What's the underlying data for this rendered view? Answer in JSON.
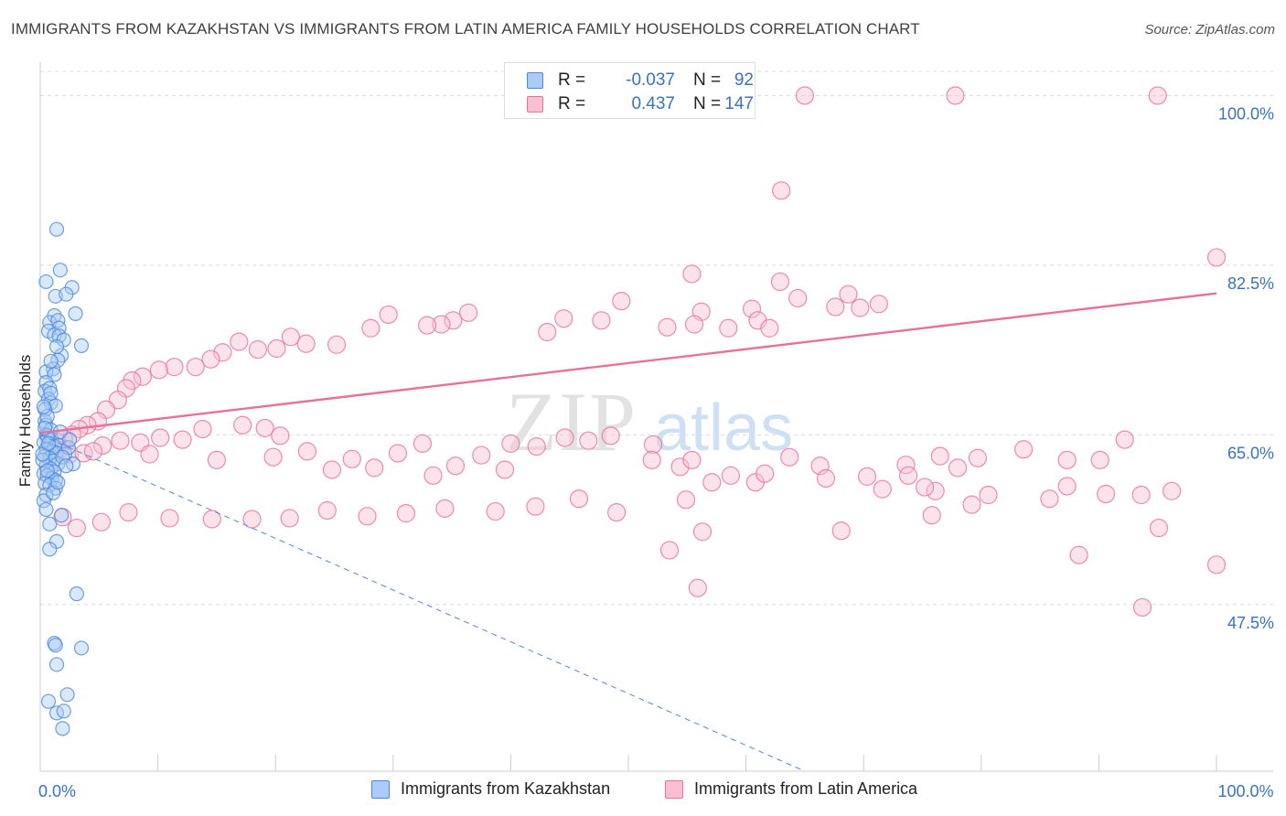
{
  "title": "IMMIGRANTS FROM KAZAKHSTAN VS IMMIGRANTS FROM LATIN AMERICA FAMILY HOUSEHOLDS CORRELATION CHART",
  "source": "Source: ZipAtlas.com",
  "watermark": {
    "part1": "ZIP",
    "part2": "atlas"
  },
  "legend": {
    "rows": [
      {
        "r_label": "R =",
        "r_value": "-0.037",
        "n_label": "N =",
        "n_value": "92",
        "color": "#4a88e0",
        "fill": "#aaccf5"
      },
      {
        "r_label": "R =",
        "r_value": "0.437",
        "n_label": "N =",
        "n_value": "147",
        "color": "#e8709a",
        "fill": "#f8c0d2"
      }
    ]
  },
  "bottom_legend": [
    {
      "label": "Immigrants from Kazakhstan",
      "fill": "#aaccf5",
      "color": "#4a88e0"
    },
    {
      "label": "Immigrants from Latin America",
      "fill": "#f8c0d2",
      "color": "#e8709a"
    }
  ],
  "chart_data": {
    "type": "scatter",
    "ylabel": "Family Households",
    "xlabel": "",
    "xlim": [
      0,
      100
    ],
    "ylim": [
      30.3,
      102.5
    ],
    "x_tick_labels": [
      {
        "value": 0,
        "label": "0.0%"
      },
      {
        "value": 100,
        "label": "100.0%"
      }
    ],
    "y_tick_labels": [
      {
        "value": 47.5,
        "label": "47.5%"
      },
      {
        "value": 65.0,
        "label": "65.0%"
      },
      {
        "value": 82.5,
        "label": "82.5%"
      },
      {
        "value": 100.0,
        "label": "100.0%"
      }
    ],
    "grid": "horizontal-dashed",
    "series": [
      {
        "name": "Immigrants from Kazakhstan",
        "color": "#4a88e0",
        "fill": "#aaccf5",
        "trend": {
          "x": [
            0,
            65
          ],
          "y": [
            65.0,
            30.3
          ],
          "style": "dashed"
        },
        "points": [
          [
            1.4,
            86.2
          ],
          [
            1.7,
            82.0
          ],
          [
            0.5,
            80.8
          ],
          [
            2.7,
            80.2
          ],
          [
            1.3,
            79.3
          ],
          [
            2.2,
            79.5
          ],
          [
            3.0,
            77.5
          ],
          [
            1.2,
            77.3
          ],
          [
            0.8,
            76.6
          ],
          [
            1.5,
            76.8
          ],
          [
            1.6,
            76.0
          ],
          [
            0.7,
            75.7
          ],
          [
            1.2,
            75.3
          ],
          [
            1.6,
            75.2
          ],
          [
            2.0,
            74.8
          ],
          [
            3.5,
            74.2
          ],
          [
            1.8,
            73.2
          ],
          [
            1.5,
            72.7
          ],
          [
            1.1,
            71.8
          ],
          [
            0.5,
            71.5
          ],
          [
            1.2,
            71.2
          ],
          [
            0.5,
            70.4
          ],
          [
            0.4,
            69.5
          ],
          [
            0.8,
            69.8
          ],
          [
            0.7,
            68.7
          ],
          [
            0.9,
            68.3
          ],
          [
            1.3,
            68.0
          ],
          [
            0.4,
            67.6
          ],
          [
            0.4,
            66.4
          ],
          [
            0.5,
            66.0
          ],
          [
            0.9,
            65.5
          ],
          [
            0.5,
            65.0
          ],
          [
            0.7,
            64.7
          ],
          [
            1.0,
            64.5
          ],
          [
            0.3,
            64.2
          ],
          [
            0.9,
            64.0
          ],
          [
            1.2,
            63.8
          ],
          [
            1.6,
            63.9
          ],
          [
            0.5,
            63.5
          ],
          [
            1.0,
            63.3
          ],
          [
            1.4,
            63.1
          ],
          [
            2.1,
            63.0
          ],
          [
            0.4,
            62.8
          ],
          [
            0.8,
            62.6
          ],
          [
            1.1,
            62.3
          ],
          [
            1.5,
            62.0
          ],
          [
            2.8,
            62.0
          ],
          [
            0.5,
            61.8
          ],
          [
            0.9,
            61.5
          ],
          [
            1.2,
            61.2
          ],
          [
            0.3,
            61.0
          ],
          [
            0.6,
            60.8
          ],
          [
            1.0,
            60.5
          ],
          [
            1.3,
            60.3
          ],
          [
            0.4,
            60.0
          ],
          [
            0.8,
            59.8
          ],
          [
            1.3,
            59.5
          ],
          [
            0.5,
            58.8
          ],
          [
            0.3,
            58.2
          ],
          [
            0.5,
            57.3
          ],
          [
            1.8,
            56.7
          ],
          [
            0.8,
            55.8
          ],
          [
            1.4,
            54.0
          ],
          [
            0.8,
            53.2
          ],
          [
            3.1,
            48.6
          ],
          [
            1.2,
            43.5
          ],
          [
            1.3,
            43.3
          ],
          [
            3.5,
            43.0
          ],
          [
            1.4,
            41.3
          ],
          [
            2.3,
            38.2
          ],
          [
            0.7,
            37.5
          ],
          [
            1.4,
            36.3
          ],
          [
            2.0,
            36.5
          ],
          [
            1.9,
            34.7
          ],
          [
            0.6,
            64.9
          ],
          [
            2.4,
            63.7
          ],
          [
            0.2,
            62.4
          ],
          [
            1.7,
            65.3
          ],
          [
            0.6,
            66.9
          ],
          [
            0.9,
            69.3
          ],
          [
            1.4,
            74.1
          ],
          [
            0.2,
            63.0
          ],
          [
            2.5,
            64.5
          ],
          [
            0.6,
            61.3
          ],
          [
            1.1,
            59.0
          ],
          [
            0.3,
            67.9
          ],
          [
            1.9,
            62.7
          ],
          [
            0.7,
            64.1
          ],
          [
            2.2,
            61.8
          ],
          [
            0.4,
            65.7
          ],
          [
            1.5,
            60.1
          ],
          [
            0.9,
            72.6
          ]
        ]
      },
      {
        "name": "Immigrants from Latin America",
        "color": "#e8709a",
        "fill": "#f8c0d2",
        "trend": {
          "x": [
            0,
            100
          ],
          "y": [
            65.2,
            79.6
          ],
          "style": "solid"
        },
        "points": [
          [
            65.0,
            100.0
          ],
          [
            77.8,
            100.0
          ],
          [
            95.0,
            100.0
          ],
          [
            63.0,
            90.2
          ],
          [
            100.0,
            83.3
          ],
          [
            55.4,
            81.6
          ],
          [
            62.9,
            80.8
          ],
          [
            56.2,
            77.7
          ],
          [
            60.5,
            78.0
          ],
          [
            64.4,
            79.1
          ],
          [
            67.6,
            78.2
          ],
          [
            68.7,
            79.5
          ],
          [
            69.7,
            78.1
          ],
          [
            71.3,
            78.5
          ],
          [
            49.4,
            78.8
          ],
          [
            47.7,
            76.8
          ],
          [
            53.3,
            76.1
          ],
          [
            55.6,
            76.4
          ],
          [
            58.5,
            76.0
          ],
          [
            61.0,
            76.8
          ],
          [
            62.0,
            76.0
          ],
          [
            44.5,
            77.0
          ],
          [
            43.1,
            75.6
          ],
          [
            36.4,
            77.6
          ],
          [
            35.1,
            76.8
          ],
          [
            34.1,
            76.4
          ],
          [
            32.9,
            76.3
          ],
          [
            29.6,
            77.4
          ],
          [
            28.1,
            76.0
          ],
          [
            25.2,
            74.3
          ],
          [
            22.6,
            74.4
          ],
          [
            21.3,
            75.1
          ],
          [
            20.1,
            73.9
          ],
          [
            18.5,
            73.8
          ],
          [
            16.9,
            74.6
          ],
          [
            15.5,
            73.5
          ],
          [
            14.5,
            72.8
          ],
          [
            13.2,
            72.0
          ],
          [
            11.4,
            72.0
          ],
          [
            10.1,
            71.7
          ],
          [
            8.7,
            71.0
          ],
          [
            7.8,
            70.6
          ],
          [
            7.3,
            69.8
          ],
          [
            6.6,
            68.6
          ],
          [
            5.6,
            67.6
          ],
          [
            4.9,
            66.4
          ],
          [
            4.0,
            66.0
          ],
          [
            3.3,
            65.6
          ],
          [
            2.7,
            65.0
          ],
          [
            2.0,
            64.6
          ],
          [
            1.4,
            64.3
          ],
          [
            0.9,
            64.0
          ],
          [
            1.6,
            63.4
          ],
          [
            2.5,
            63.0
          ],
          [
            3.7,
            63.1
          ],
          [
            5.3,
            63.9
          ],
          [
            6.8,
            64.4
          ],
          [
            8.5,
            64.2
          ],
          [
            10.2,
            64.7
          ],
          [
            12.1,
            64.5
          ],
          [
            13.8,
            65.6
          ],
          [
            17.2,
            66.0
          ],
          [
            19.1,
            65.7
          ],
          [
            20.4,
            64.9
          ],
          [
            22.7,
            63.3
          ],
          [
            24.8,
            61.4
          ],
          [
            28.4,
            61.6
          ],
          [
            30.4,
            63.1
          ],
          [
            32.5,
            64.1
          ],
          [
            35.3,
            61.8
          ],
          [
            37.5,
            62.9
          ],
          [
            40.0,
            64.1
          ],
          [
            42.2,
            63.8
          ],
          [
            44.6,
            64.7
          ],
          [
            46.6,
            64.4
          ],
          [
            48.5,
            64.9
          ],
          [
            52.1,
            64.0
          ],
          [
            54.4,
            61.7
          ],
          [
            58.7,
            60.8
          ],
          [
            60.8,
            60.1
          ],
          [
            63.7,
            62.7
          ],
          [
            66.3,
            61.8
          ],
          [
            70.3,
            60.7
          ],
          [
            73.6,
            61.9
          ],
          [
            76.5,
            62.8
          ],
          [
            79.7,
            62.6
          ],
          [
            83.6,
            63.5
          ],
          [
            87.3,
            62.4
          ],
          [
            90.1,
            62.4
          ],
          [
            92.2,
            64.5
          ],
          [
            55.4,
            62.4
          ],
          [
            52.0,
            62.4
          ],
          [
            49.0,
            57.0
          ],
          [
            56.3,
            55.0
          ],
          [
            68.1,
            55.1
          ],
          [
            73.8,
            60.8
          ],
          [
            76.1,
            59.2
          ],
          [
            78.0,
            61.6
          ],
          [
            80.6,
            58.8
          ],
          [
            85.8,
            58.4
          ],
          [
            90.6,
            58.9
          ],
          [
            93.6,
            58.8
          ],
          [
            96.2,
            59.2
          ],
          [
            45.8,
            58.4
          ],
          [
            42.1,
            57.6
          ],
          [
            38.7,
            57.1
          ],
          [
            34.4,
            57.4
          ],
          [
            31.1,
            56.9
          ],
          [
            27.8,
            56.6
          ],
          [
            24.4,
            57.2
          ],
          [
            21.2,
            56.4
          ],
          [
            18.0,
            56.3
          ],
          [
            14.6,
            56.3
          ],
          [
            11.0,
            56.4
          ],
          [
            7.5,
            57.0
          ],
          [
            5.2,
            56.0
          ],
          [
            3.1,
            55.4
          ],
          [
            1.9,
            56.5
          ],
          [
            4.5,
            63.3
          ],
          [
            9.3,
            63.0
          ],
          [
            15.0,
            62.4
          ],
          [
            19.8,
            62.7
          ],
          [
            26.5,
            62.5
          ],
          [
            33.4,
            60.8
          ],
          [
            39.5,
            61.4
          ],
          [
            57.1,
            60.1
          ],
          [
            61.6,
            61.0
          ],
          [
            66.8,
            60.5
          ],
          [
            71.6,
            59.4
          ],
          [
            75.2,
            59.6
          ],
          [
            79.2,
            57.8
          ],
          [
            87.3,
            59.7
          ],
          [
            88.3,
            52.6
          ],
          [
            75.8,
            56.7
          ],
          [
            54.9,
            58.3
          ],
          [
            95.1,
            55.4
          ],
          [
            55.9,
            49.2
          ],
          [
            93.7,
            47.2
          ],
          [
            100.0,
            51.6
          ],
          [
            53.5,
            53.1
          ]
        ]
      }
    ]
  }
}
